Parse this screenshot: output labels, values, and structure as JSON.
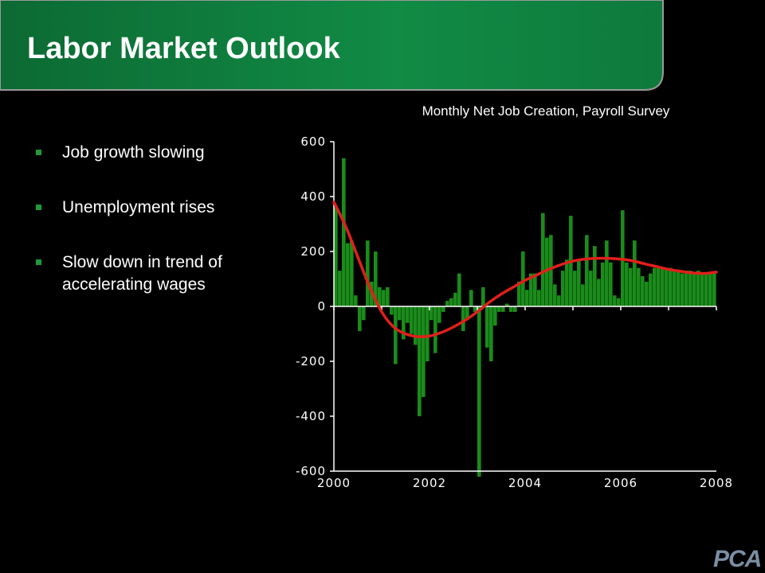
{
  "slide": {
    "title": "Labor Market Outlook",
    "bullets": [
      "Job growth slowing",
      "Unemployment rises",
      "Slow down in trend of accelerating wages"
    ],
    "logo_text": "PCA",
    "colors": {
      "background": "#000000",
      "title_band": "#0f7a3c",
      "bullet_marker": "#1e9a3c"
    }
  },
  "chart_data": {
    "type": "bar",
    "title": "Monthly Net Job Creation, Payroll Survey",
    "xlabel": "",
    "ylabel": "",
    "xlim": [
      2000,
      2008
    ],
    "ylim": [
      -600,
      600
    ],
    "x_ticks": [
      "2000",
      "2002",
      "2004",
      "2006",
      "2008"
    ],
    "y_ticks": [
      "600",
      "400",
      "200",
      "0",
      "-200",
      "-400",
      "-600"
    ],
    "grid": false,
    "legend": "none",
    "bar_color": "#1a8c1a",
    "trend_color": "#e0201a",
    "series": [
      {
        "type": "bar",
        "values": [
          360,
          130,
          540,
          230,
          240,
          40,
          -90,
          -50,
          240,
          90,
          200,
          70,
          60,
          70,
          -30,
          -210,
          -50,
          -120,
          -60,
          -100,
          -140,
          -400,
          -330,
          -200,
          -50,
          -170,
          -60,
          -20,
          20,
          30,
          50,
          120,
          -90,
          -50,
          60,
          -20,
          -620,
          70,
          -150,
          -200,
          -70,
          -20,
          -20,
          10,
          -20,
          -20,
          90,
          200,
          60,
          120,
          120,
          60,
          340,
          250,
          260,
          80,
          40,
          130,
          170,
          330,
          130,
          170,
          80,
          260,
          130,
          220,
          100,
          160,
          240,
          160,
          40,
          30,
          350,
          160,
          140,
          240,
          140,
          110,
          90,
          120,
          140,
          140,
          140,
          140,
          140,
          130,
          130,
          120,
          130,
          130,
          120,
          130,
          120,
          120,
          120,
          120
        ]
      },
      {
        "type": "line",
        "x": [
          2000.0,
          2000.25,
          2000.5,
          2000.75,
          2001.0,
          2001.25,
          2001.5,
          2001.75,
          2002.0,
          2002.25,
          2002.5,
          2002.75,
          2003.0,
          2003.25,
          2003.5,
          2003.75,
          2004.0,
          2004.25,
          2004.5,
          2004.75,
          2005.0,
          2005.25,
          2005.5,
          2005.75,
          2006.0,
          2006.25,
          2006.5,
          2006.75,
          2007.0,
          2007.25,
          2007.5,
          2007.75,
          2008.0
        ],
        "y": [
          380,
          290,
          180,
          70,
          -20,
          -75,
          -100,
          -110,
          -108,
          -95,
          -75,
          -50,
          -20,
          15,
          45,
          70,
          95,
          115,
          135,
          152,
          165,
          172,
          175,
          175,
          172,
          166,
          155,
          145,
          135,
          128,
          122,
          120,
          125
        ]
      }
    ]
  }
}
